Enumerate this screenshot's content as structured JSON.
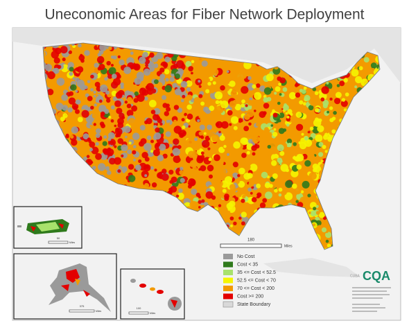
{
  "title": "Uneconomic Areas for Fiber Network Deployment",
  "scale_bar": {
    "value": "180",
    "unit": "Miles"
  },
  "insets": [
    {
      "name": "Puerto Rico",
      "scale_value": "50",
      "scale_unit": "Miles"
    },
    {
      "name": "Alaska",
      "scale_value": "375",
      "scale_unit": "Miles"
    },
    {
      "name": "Hawaii",
      "scale_value": "100",
      "scale_unit": "Miles"
    }
  ],
  "place_label": "CUBA",
  "logo": "CQA",
  "legend": [
    {
      "label": "No Cost",
      "color": "#9a9a9a"
    },
    {
      "label": "Cost < 35",
      "color": "#2f7a1c"
    },
    {
      "label": "35 <= Cost < 52.5",
      "color": "#a8e26c"
    },
    {
      "label": "52.5 <= Cost < 70",
      "color": "#f5f500"
    },
    {
      "label": "70 <= Cost < 200",
      "color": "#f39a00"
    },
    {
      "label": "Cost >= 200",
      "color": "#e30000"
    },
    {
      "label": "State Boundary",
      "color": "#d9d9d9"
    }
  ]
}
